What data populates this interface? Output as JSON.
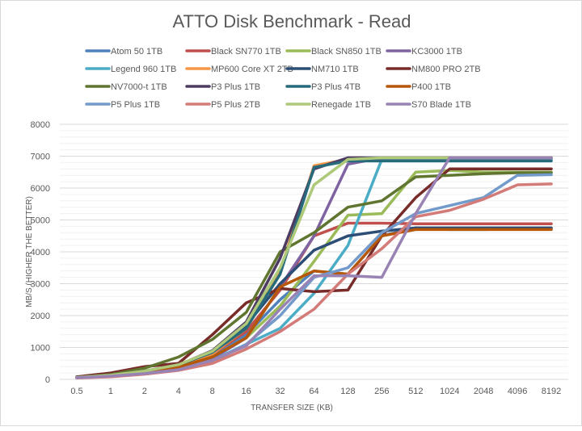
{
  "chart_data": {
    "type": "line",
    "title": "ATTO Disk Benchmark - Read",
    "xlabel": "TRANSFER SIZE (KB)",
    "ylabel": "MB/S (HIGHER THE BETTER)",
    "ylim": [
      0,
      8000
    ],
    "yticks": [
      "0",
      "1000",
      "2000",
      "3000",
      "4000",
      "5000",
      "6000",
      "7000",
      "8000"
    ],
    "grid": true,
    "legend_position": "top",
    "categories": [
      "0.5",
      "1",
      "2",
      "4",
      "8",
      "16",
      "32",
      "64",
      "128",
      "256",
      "512",
      "1024",
      "2048",
      "4096",
      "8192"
    ],
    "series": [
      {
        "name": "Atom 50 1TB",
        "color": "#4F81BD",
        "values": [
          60,
          120,
          220,
          400,
          750,
          1400,
          2500,
          3400,
          3300,
          4500,
          4750,
          4700,
          4700,
          4720,
          4720
        ]
      },
      {
        "name": "Black SN770 1TB",
        "color": "#C0504D",
        "values": [
          60,
          130,
          250,
          420,
          800,
          1500,
          2800,
          4500,
          4900,
          4900,
          4880,
          4880,
          4880,
          4880,
          4880
        ]
      },
      {
        "name": "Black SN850 1TB",
        "color": "#9BBB59",
        "values": [
          50,
          100,
          180,
          350,
          700,
          1300,
          2300,
          3700,
          5150,
          5200,
          6500,
          6550,
          6500,
          6500,
          6500
        ]
      },
      {
        "name": "KC3000 1TB",
        "color": "#8064A2",
        "values": [
          50,
          100,
          200,
          350,
          650,
          1300,
          2900,
          4500,
          6750,
          6950,
          6950,
          6950,
          6950,
          6950,
          6950
        ]
      },
      {
        "name": "Legend 960 1TB",
        "color": "#4BACC6",
        "values": [
          50,
          100,
          180,
          300,
          600,
          1100,
          1600,
          2700,
          4200,
          6900,
          6900,
          6900,
          6900,
          6900,
          6900
        ]
      },
      {
        "name": "MP600 Core XT 2TB",
        "color": "#F79646",
        "values": [
          50,
          120,
          230,
          420,
          800,
          1600,
          3400,
          6700,
          6900,
          6950,
          6950,
          6950,
          6950,
          6950,
          6950
        ]
      },
      {
        "name": "NM710 1TB",
        "color": "#2C4D75",
        "values": [
          60,
          130,
          260,
          450,
          850,
          1700,
          3000,
          4050,
          4500,
          4650,
          4750,
          4750,
          4750,
          4750,
          4750
        ]
      },
      {
        "name": "NM800 PRO 2TB",
        "color": "#772C2A",
        "values": [
          80,
          200,
          400,
          500,
          1400,
          2400,
          2850,
          2750,
          2800,
          4500,
          5700,
          6600,
          6600,
          6600,
          6600
        ]
      },
      {
        "name": "NV7000-t 1TB",
        "color": "#5F7530",
        "values": [
          60,
          150,
          350,
          700,
          1250,
          2100,
          4000,
          4600,
          5400,
          5600,
          6350,
          6400,
          6450,
          6480,
          6480
        ]
      },
      {
        "name": "P3 Plus 1TB",
        "color": "#4D3B62",
        "values": [
          60,
          130,
          260,
          450,
          900,
          1800,
          3800,
          6600,
          6950,
          6950,
          6950,
          6950,
          6950,
          6950,
          6950
        ]
      },
      {
        "name": "P3 Plus 4TB",
        "color": "#276A7C",
        "values": [
          60,
          130,
          250,
          450,
          850,
          1600,
          3300,
          6650,
          6850,
          6850,
          6850,
          6850,
          6850,
          6850,
          6850
        ]
      },
      {
        "name": "P400 1TB",
        "color": "#B65708",
        "values": [
          50,
          110,
          220,
          380,
          700,
          1300,
          2900,
          3400,
          3300,
          4500,
          4700,
          4700,
          4700,
          4700,
          4700
        ]
      },
      {
        "name": "P5 Plus 1TB",
        "color": "#729ACA",
        "values": [
          50,
          100,
          180,
          300,
          550,
          1100,
          2000,
          3200,
          3500,
          4600,
          5200,
          5450,
          5700,
          6400,
          6420
        ]
      },
      {
        "name": "P5 Plus 2TB",
        "color": "#D37B78",
        "values": [
          40,
          80,
          160,
          280,
          500,
          950,
          1500,
          2200,
          3300,
          4100,
          5100,
          5300,
          5650,
          6100,
          6130
        ]
      },
      {
        "name": "Renegade 1TB",
        "color": "#AFC97A",
        "values": [
          60,
          130,
          260,
          460,
          880,
          1750,
          3500,
          6100,
          6900,
          6950,
          6950,
          6950,
          6950,
          6950,
          6950
        ]
      },
      {
        "name": "S70 Blade 1TB",
        "color": "#9983B5",
        "values": [
          50,
          100,
          180,
          300,
          600,
          1050,
          2200,
          3250,
          3250,
          3200,
          5200,
          6950,
          6950,
          6950,
          6950
        ]
      }
    ]
  }
}
